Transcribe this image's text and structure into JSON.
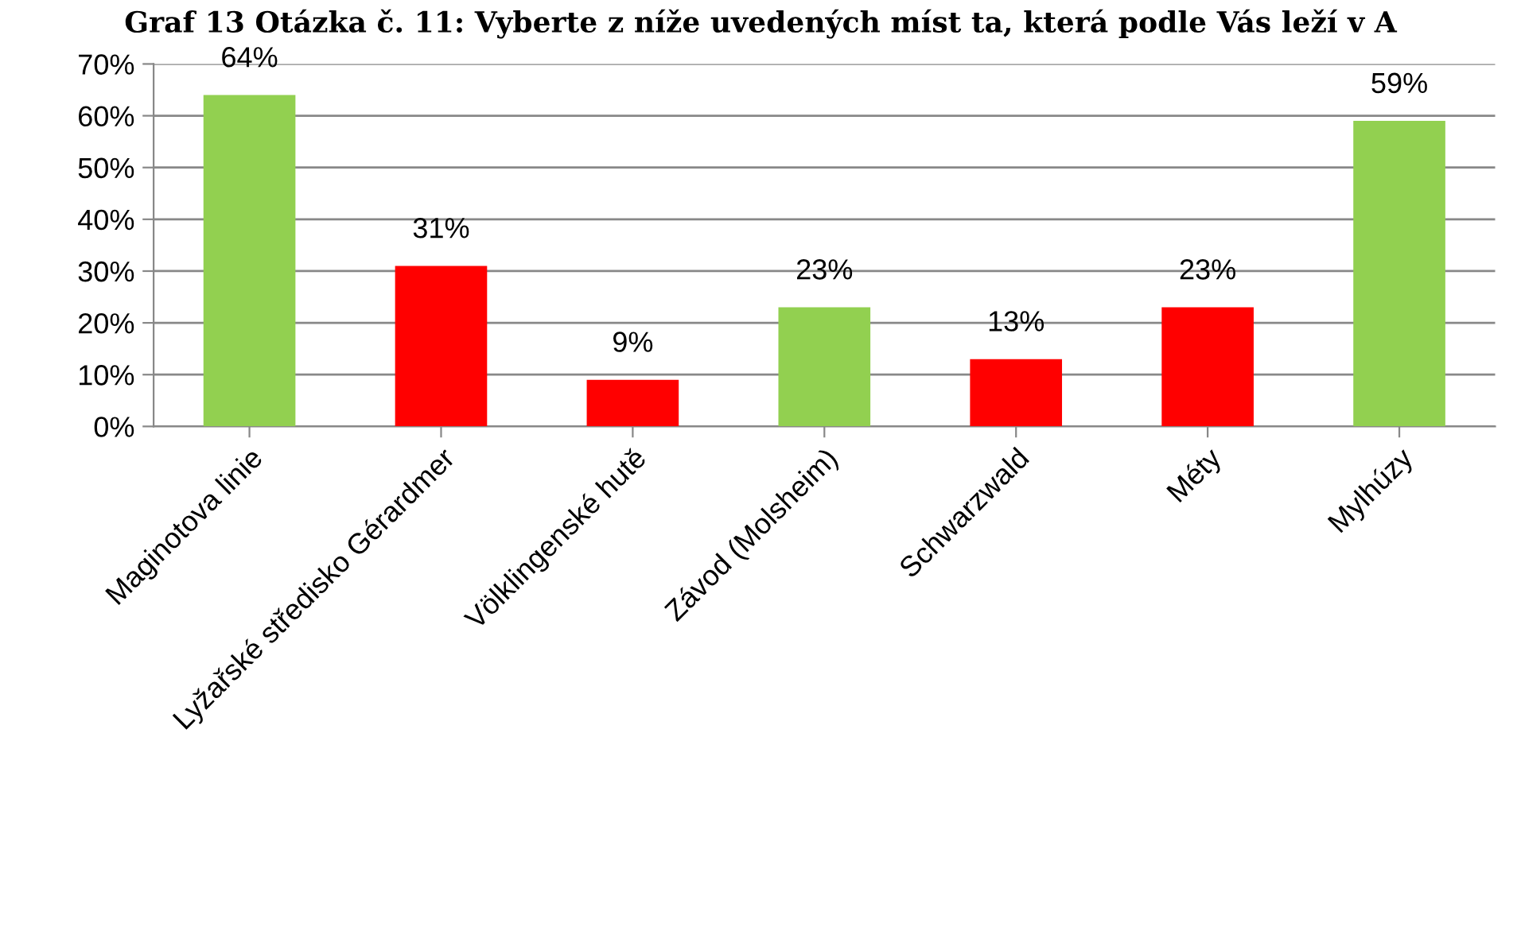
{
  "chart_data": {
    "type": "bar",
    "title": "Graf 13 Otázka č. 11: Vyberte z níže uvedených míst ta, která podle Vás leží v A",
    "categories": [
      "Maginotova linie",
      "Lyžařské středisko Gérardmer",
      "Völklingenské hutě",
      "Závod (Molsheim)",
      "Schwarzwald",
      "Méty",
      "Mylhúzy"
    ],
    "values": [
      64,
      31,
      9,
      23,
      13,
      23,
      59
    ],
    "colors": [
      "#92d050",
      "#ff0000",
      "#ff0000",
      "#92d050",
      "#ff0000",
      "#ff0000",
      "#92d050"
    ],
    "value_labels": [
      "64%",
      "31%",
      "9%",
      "23%",
      "13%",
      "23%",
      "59%"
    ],
    "ylim": [
      0,
      70
    ],
    "yticks": [
      {
        "value": 0,
        "label": "0%"
      },
      {
        "value": 10,
        "label": "10%"
      },
      {
        "value": 20,
        "label": "20%"
      },
      {
        "value": 30,
        "label": "30%"
      },
      {
        "value": 40,
        "label": "40%"
      },
      {
        "value": 50,
        "label": "50%"
      },
      {
        "value": 60,
        "label": "60%"
      },
      {
        "value": 70,
        "label": "70%"
      }
    ],
    "grid": "y"
  }
}
